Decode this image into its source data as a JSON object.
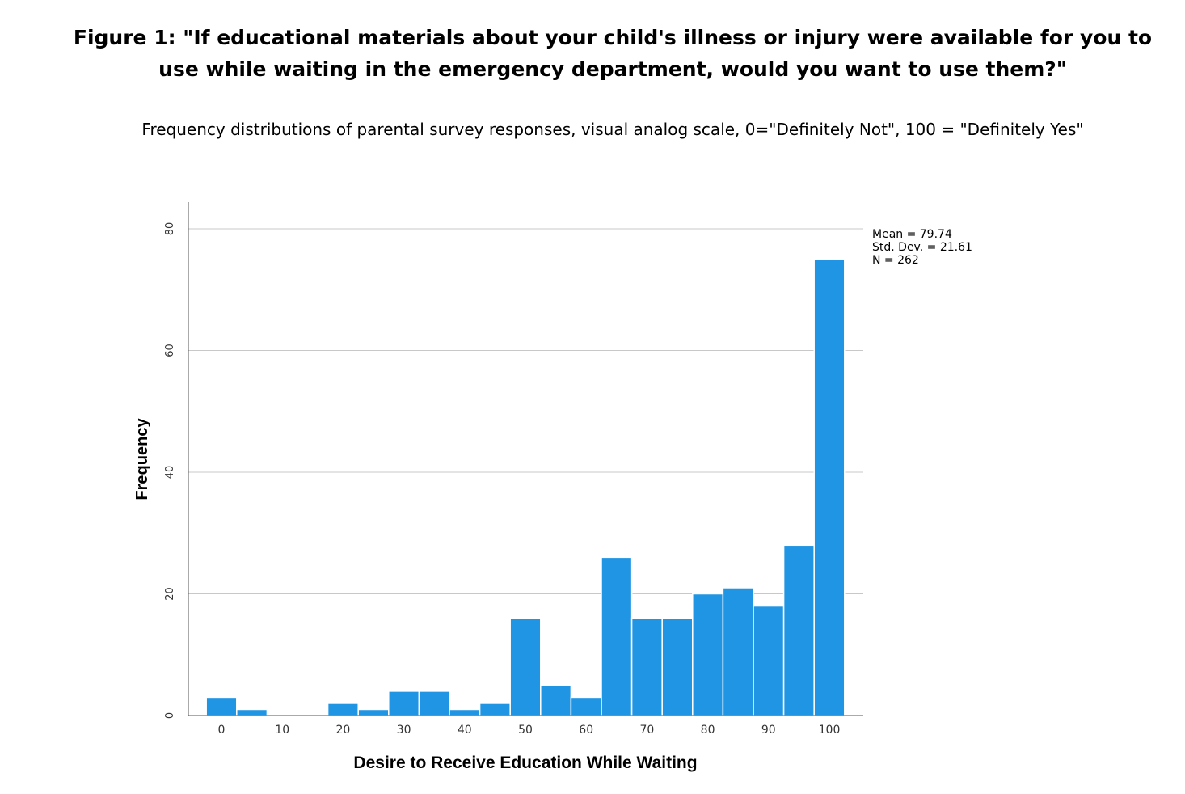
{
  "figure": {
    "title": "Figure 1: \"If educational materials about your child's illness or injury were available for you to use while waiting in the emergency department, would you want to use them?\"",
    "subtitle": "Frequency distributions of parental survey responses, visual analog scale, 0=\"Definitely Not\", 100 = \"Definitely Yes\""
  },
  "chart_data": {
    "type": "bar",
    "xlabel": "Desire to Receive Education While Waiting",
    "ylabel": "Frequency",
    "bin_width": 5,
    "bins": [
      {
        "start": -2.5,
        "end": 2.5,
        "count": 3
      },
      {
        "start": 2.5,
        "end": 7.5,
        "count": 1
      },
      {
        "start": 7.5,
        "end": 12.5,
        "count": 0
      },
      {
        "start": 12.5,
        "end": 17.5,
        "count": 0
      },
      {
        "start": 17.5,
        "end": 22.5,
        "count": 2
      },
      {
        "start": 22.5,
        "end": 27.5,
        "count": 1
      },
      {
        "start": 27.5,
        "end": 32.5,
        "count": 4
      },
      {
        "start": 32.5,
        "end": 37.5,
        "count": 4
      },
      {
        "start": 37.5,
        "end": 42.5,
        "count": 1
      },
      {
        "start": 42.5,
        "end": 47.5,
        "count": 2
      },
      {
        "start": 47.5,
        "end": 52.5,
        "count": 16
      },
      {
        "start": 52.5,
        "end": 57.5,
        "count": 5
      },
      {
        "start": 57.5,
        "end": 62.5,
        "count": 3
      },
      {
        "start": 62.5,
        "end": 67.5,
        "count": 26
      },
      {
        "start": 67.5,
        "end": 72.5,
        "count": 16
      },
      {
        "start": 72.5,
        "end": 77.5,
        "count": 16
      },
      {
        "start": 77.5,
        "end": 82.5,
        "count": 20
      },
      {
        "start": 82.5,
        "end": 87.5,
        "count": 21
      },
      {
        "start": 87.5,
        "end": 92.5,
        "count": 18
      },
      {
        "start": 92.5,
        "end": 97.5,
        "count": 28
      },
      {
        "start": 97.5,
        "end": 102.5,
        "count": 75
      }
    ],
    "xticks": [
      0,
      10,
      20,
      30,
      40,
      50,
      60,
      70,
      80,
      90,
      100
    ],
    "yticks": [
      0,
      20,
      40,
      60,
      80
    ],
    "xlim": [
      -5,
      107.5
    ],
    "ylim": [
      0,
      84
    ],
    "grid": true,
    "bar_color": "#2095e3",
    "stats": {
      "mean": "Mean = 79.74",
      "std": "Std. Dev. = 21.61",
      "n": "N = 262"
    }
  }
}
